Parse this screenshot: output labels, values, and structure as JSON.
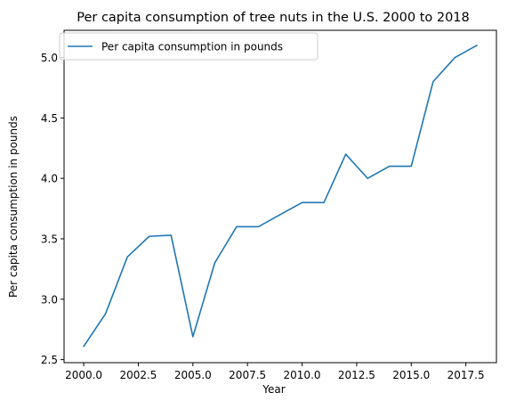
{
  "chart_data": {
    "type": "line",
    "title": "Per capita consumption of tree nuts in the U.S. 2000 to 2018",
    "xlabel": "Year",
    "ylabel": "Per capita consumption in pounds",
    "xlim": [
      1999.1,
      2018.9
    ],
    "ylim": [
      2.475,
      5.225
    ],
    "x_ticks": [
      2000.0,
      2002.5,
      2005.0,
      2007.5,
      2010.0,
      2012.5,
      2015.0,
      2017.5
    ],
    "x_tick_labels": [
      "2000.0",
      "2002.5",
      "2005.0",
      "2007.5",
      "2010.0",
      "2012.5",
      "2015.0",
      "2017.5"
    ],
    "y_ticks": [
      2.5,
      3.0,
      3.5,
      4.0,
      4.5,
      5.0
    ],
    "y_tick_labels": [
      "2.5",
      "3.0",
      "3.5",
      "4.0",
      "4.5",
      "5.0"
    ],
    "grid": false,
    "legend_position": "top-left",
    "series": [
      {
        "name": "Per capita consumption in pounds",
        "color": "#1f77b4",
        "x": [
          2000,
          2001,
          2002,
          2003,
          2004,
          2005,
          2006,
          2007,
          2008,
          2009,
          2010,
          2011,
          2012,
          2013,
          2014,
          2015,
          2016,
          2017,
          2018
        ],
        "y": [
          2.61,
          2.88,
          3.35,
          3.52,
          3.53,
          2.69,
          3.3,
          3.6,
          3.6,
          3.7,
          3.8,
          3.8,
          4.2,
          4.0,
          4.1,
          4.1,
          4.8,
          5.0,
          5.1
        ]
      }
    ]
  }
}
